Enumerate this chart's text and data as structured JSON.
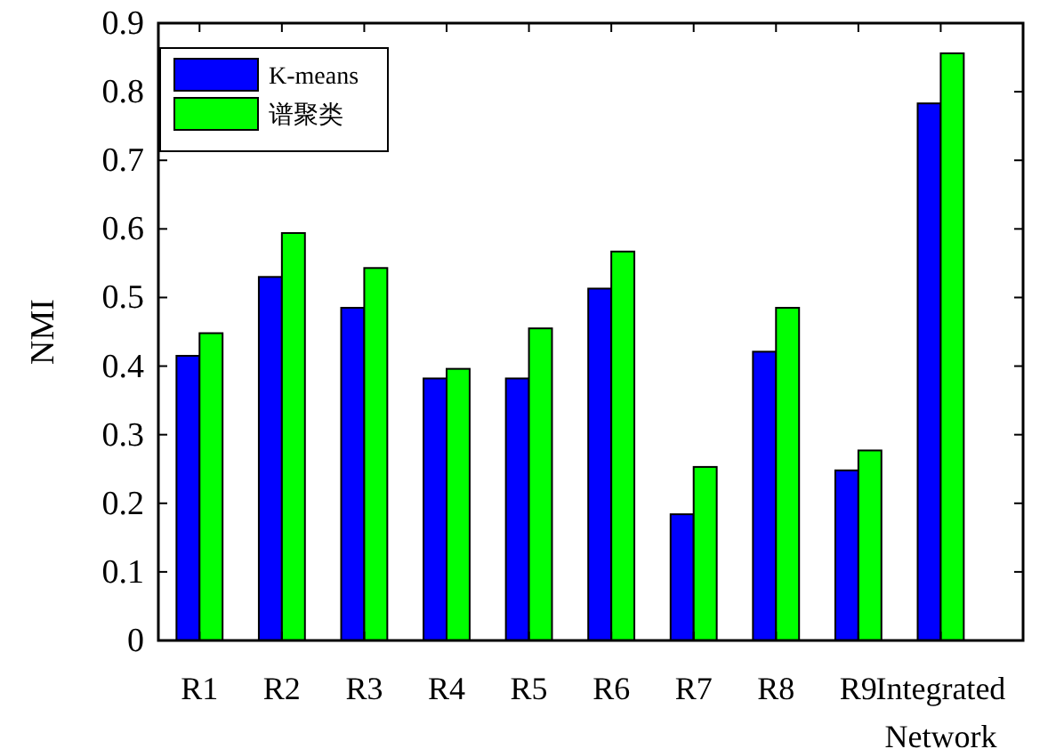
{
  "chart_data": {
    "type": "bar",
    "ylabel": "NMI",
    "categories": [
      "R1",
      "R2",
      "R3",
      "R4",
      "R5",
      "R6",
      "R7",
      "R8",
      "R9",
      "Integrated Network"
    ],
    "series": [
      {
        "name": "K-means",
        "color": "#0000ff",
        "values": [
          0.415,
          0.53,
          0.485,
          0.382,
          0.382,
          0.513,
          0.184,
          0.421,
          0.248,
          0.783
        ]
      },
      {
        "name": "谱聚类",
        "color": "#00ff00",
        "values": [
          0.448,
          0.594,
          0.543,
          0.396,
          0.455,
          0.567,
          0.253,
          0.485,
          0.277,
          0.856
        ]
      }
    ],
    "ylim": [
      0,
      0.9
    ],
    "yticks": [
      0,
      0.1,
      0.2,
      0.3,
      0.4,
      0.5,
      0.6,
      0.7,
      0.8,
      0.9
    ],
    "legend": "top left"
  }
}
